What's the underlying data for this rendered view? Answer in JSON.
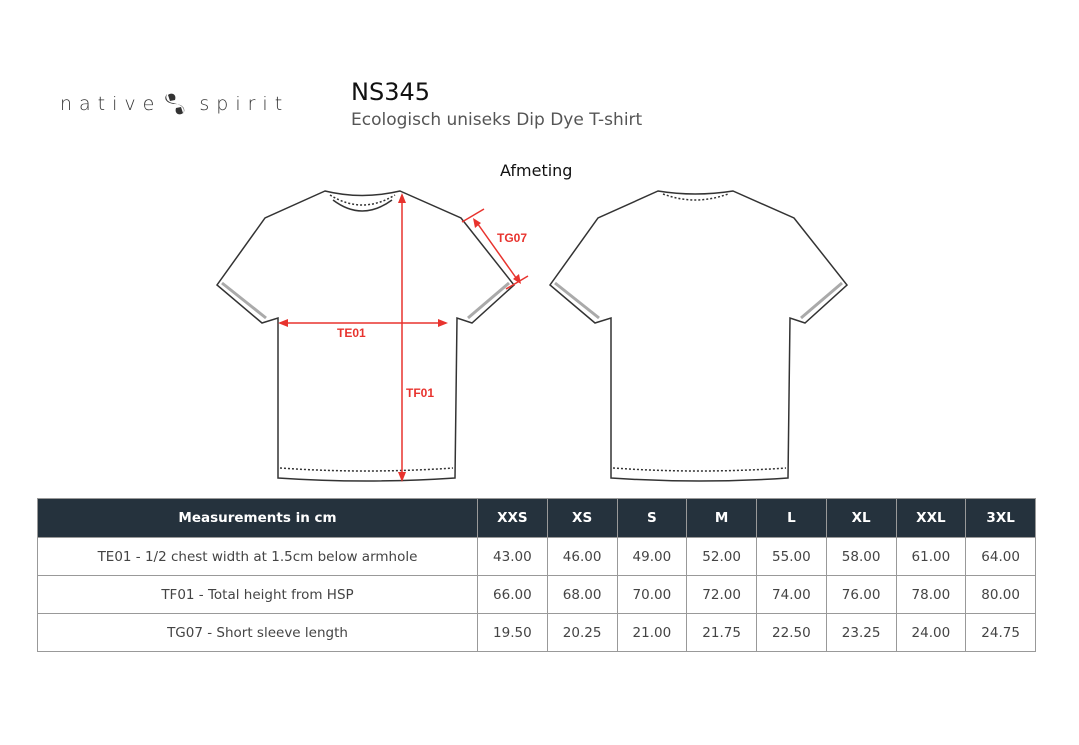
{
  "brand": {
    "left": "native",
    "right": "spirit"
  },
  "product": {
    "code": "NS345",
    "name": "Ecologisch uniseks Dip Dye T-shirt"
  },
  "section_title": "Afmeting",
  "diagram_labels": {
    "chest": "TE01",
    "height": "TF01",
    "sleeve": "TG07"
  },
  "accent_color": "#e8332e",
  "header_color": "#25323d",
  "table": {
    "header": "Measurements in cm",
    "sizes": [
      "XXS",
      "XS",
      "S",
      "M",
      "L",
      "XL",
      "XXL",
      "3XL"
    ],
    "rows": [
      {
        "label": "TE01 - 1/2 chest width at 1.5cm below armhole",
        "values": [
          "43.00",
          "46.00",
          "49.00",
          "52.00",
          "55.00",
          "58.00",
          "61.00",
          "64.00"
        ]
      },
      {
        "label": "TF01 - Total height from HSP",
        "values": [
          "66.00",
          "68.00",
          "70.00",
          "72.00",
          "74.00",
          "76.00",
          "78.00",
          "80.00"
        ]
      },
      {
        "label": "TG07 - Short sleeve length",
        "values": [
          "19.50",
          "20.25",
          "21.00",
          "21.75",
          "22.50",
          "23.25",
          "24.00",
          "24.75"
        ]
      }
    ]
  }
}
